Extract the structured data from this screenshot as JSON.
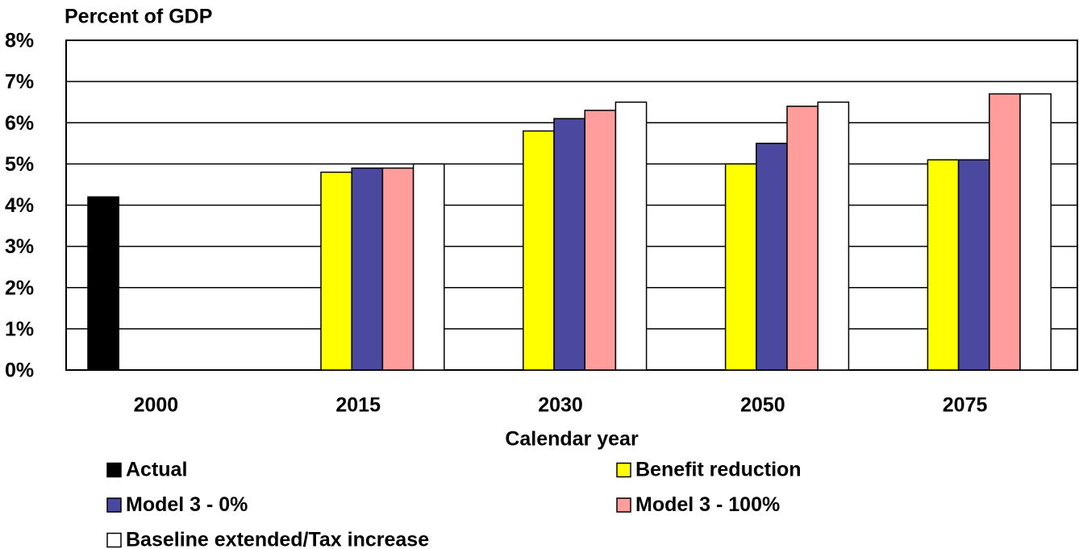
{
  "chart_data": {
    "type": "bar",
    "y_axis_label": "Percent of GDP",
    "x_axis_label": "Calendar year",
    "categories": [
      "2000",
      "2015",
      "2030",
      "2050",
      "2075"
    ],
    "series": [
      {
        "name": "Actual",
        "color": "#000000",
        "values": [
          4.2,
          null,
          null,
          null,
          null
        ]
      },
      {
        "name": "Benefit reduction",
        "color": "#ffff00",
        "values": [
          null,
          4.8,
          5.8,
          5.0,
          5.1
        ]
      },
      {
        "name": "Model 3 - 0%",
        "color": "#4b48a0",
        "values": [
          null,
          4.9,
          6.1,
          5.5,
          5.1
        ]
      },
      {
        "name": "Model 3 - 100%",
        "color": "#ff9d9d",
        "values": [
          null,
          4.9,
          6.3,
          6.4,
          6.7
        ]
      },
      {
        "name": "Baseline extended/Tax increase",
        "color": "#ffffff",
        "values": [
          null,
          5.0,
          6.5,
          6.5,
          6.7
        ]
      }
    ],
    "ylim": [
      0,
      8
    ],
    "yticks": [
      {
        "value": 0,
        "label": "0%"
      },
      {
        "value": 1,
        "label": "1%"
      },
      {
        "value": 2,
        "label": "2%"
      },
      {
        "value": 3,
        "label": "3%"
      },
      {
        "value": 4,
        "label": "4%"
      },
      {
        "value": 5,
        "label": "5%"
      },
      {
        "value": 6,
        "label": "6%"
      },
      {
        "value": 7,
        "label": "7%"
      },
      {
        "value": 8,
        "label": "8%"
      }
    ],
    "grid": true
  }
}
